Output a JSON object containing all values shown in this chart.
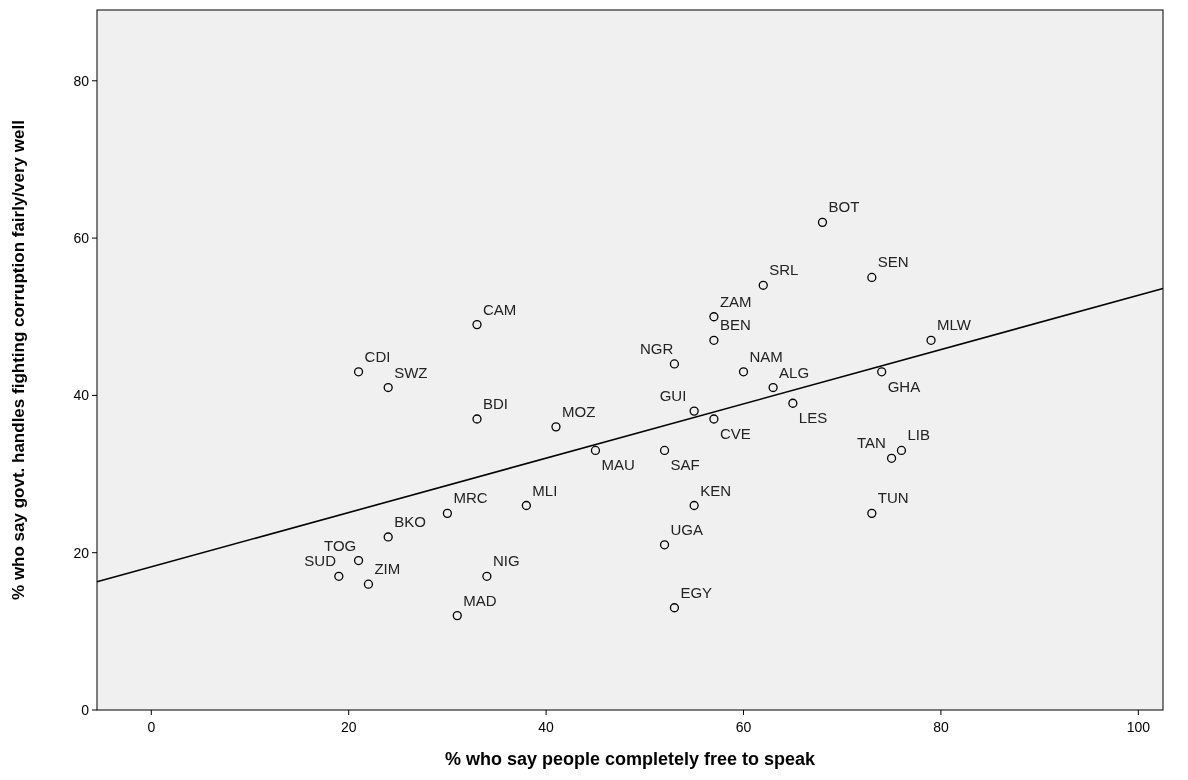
{
  "chart_data": {
    "type": "scatter",
    "xlabel": "% who say people completely free to speak",
    "ylabel": "% who say govt. handles fighting corruption fairly/very well",
    "xlim": [
      -5.5,
      102.5
    ],
    "ylim": [
      0,
      89
    ],
    "xticks": [
      0,
      20,
      40,
      60,
      80,
      100
    ],
    "yticks": [
      0,
      20,
      40,
      60,
      80
    ],
    "grid": false,
    "series": [
      {
        "marker": "circle",
        "color": "#000000",
        "x": [
          68,
          73,
          62,
          33,
          57,
          57,
          79,
          21,
          53,
          60,
          24,
          63,
          74,
          33,
          41,
          55,
          57,
          65,
          45,
          52,
          76,
          75,
          30,
          38,
          55,
          73,
          24,
          52,
          21,
          19,
          22,
          34,
          31,
          53
        ],
        "values": [
          62,
          55,
          54,
          49,
          50,
          47,
          47,
          43,
          44,
          43,
          41,
          41,
          43,
          37,
          36,
          38,
          37,
          39,
          33,
          33,
          33,
          32,
          25,
          26,
          26,
          25,
          22,
          21,
          19,
          17,
          16,
          17,
          12,
          13
        ]
      },
      {
        "type": "line",
        "marker": "none",
        "color": "#000000",
        "line_style": "solid",
        "x": [
          -5.5,
          102.5
        ],
        "values": [
          16.3,
          53.6
        ]
      }
    ],
    "annotations": [
      {
        "text": "BOT",
        "x": 68,
        "y": 62
      },
      {
        "text": "SEN",
        "x": 73,
        "y": 55
      },
      {
        "text": "SRL",
        "x": 62,
        "y": 54
      },
      {
        "text": "CAM",
        "x": 33,
        "y": 49
      },
      {
        "text": "ZAM",
        "x": 57,
        "y": 50
      },
      {
        "text": "BEN",
        "x": 57,
        "y": 47
      },
      {
        "text": "MLW",
        "x": 79,
        "y": 47
      },
      {
        "text": "CDI",
        "x": 21,
        "y": 43
      },
      {
        "text": "NGR",
        "x": 53,
        "y": 44
      },
      {
        "text": "NAM",
        "x": 60,
        "y": 43
      },
      {
        "text": "SWZ",
        "x": 24,
        "y": 41
      },
      {
        "text": "ALG",
        "x": 63,
        "y": 41
      },
      {
        "text": "GHA",
        "x": 74,
        "y": 43
      },
      {
        "text": "BDI",
        "x": 33,
        "y": 37
      },
      {
        "text": "MOZ",
        "x": 41,
        "y": 36
      },
      {
        "text": "GUI",
        "x": 55,
        "y": 38
      },
      {
        "text": "CVE",
        "x": 57,
        "y": 37
      },
      {
        "text": "LES",
        "x": 65,
        "y": 39
      },
      {
        "text": "MAU",
        "x": 45,
        "y": 33
      },
      {
        "text": "SAF",
        "x": 52,
        "y": 33
      },
      {
        "text": "LIB",
        "x": 76,
        "y": 33
      },
      {
        "text": "TAN",
        "x": 75,
        "y": 32
      },
      {
        "text": "MRC",
        "x": 30,
        "y": 25
      },
      {
        "text": "MLI",
        "x": 38,
        "y": 26
      },
      {
        "text": "KEN",
        "x": 55,
        "y": 26
      },
      {
        "text": "TUN",
        "x": 73,
        "y": 25
      },
      {
        "text": "BKO",
        "x": 24,
        "y": 22
      },
      {
        "text": "UGA",
        "x": 52,
        "y": 21
      },
      {
        "text": "TOG",
        "x": 21,
        "y": 19
      },
      {
        "text": "SUD",
        "x": 19,
        "y": 17
      },
      {
        "text": "ZIM",
        "x": 22,
        "y": 16
      },
      {
        "text": "NIG",
        "x": 34,
        "y": 17
      },
      {
        "text": "MAD",
        "x": 31,
        "y": 12
      },
      {
        "text": "EGY",
        "x": 53,
        "y": 13
      }
    ]
  }
}
